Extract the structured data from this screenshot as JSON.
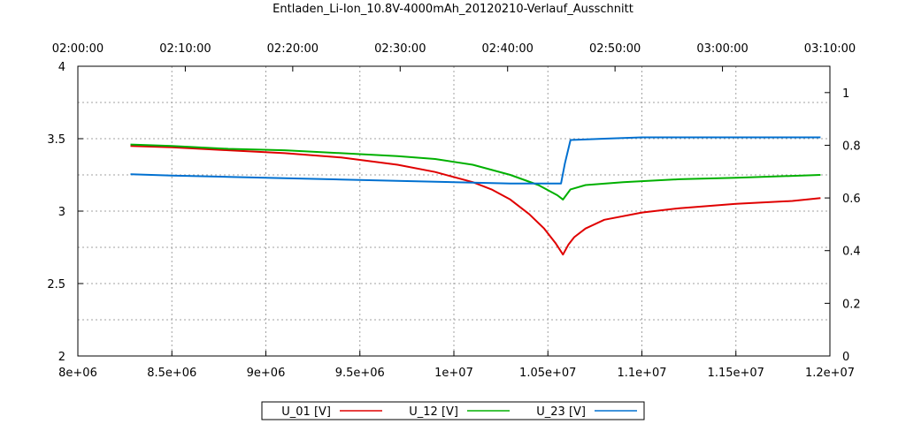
{
  "chart_data": {
    "type": "line",
    "title": "Entladen_Li-Ion_10.8V-4000mAh_20120210-Verlauf_Ausschnitt",
    "xlim": [
      8000000,
      12000000
    ],
    "ylim": [
      2,
      4
    ],
    "y2lim": [
      0,
      1.1
    ],
    "x_ticks": [
      {
        "value": 8000000,
        "label": "8e+06"
      },
      {
        "value": 8500000,
        "label": "8.5e+06"
      },
      {
        "value": 9000000,
        "label": "9e+06"
      },
      {
        "value": 9500000,
        "label": "9.5e+06"
      },
      {
        "value": 10000000,
        "label": "1e+07"
      },
      {
        "value": 10500000,
        "label": "1.05e+07"
      },
      {
        "value": 11000000,
        "label": "1.1e+07"
      },
      {
        "value": 11500000,
        "label": "1.15e+07"
      },
      {
        "value": 12000000,
        "label": "1.2e+07"
      }
    ],
    "x2_ticks": [
      {
        "value": 8000000,
        "label": "02:00:00"
      },
      {
        "value": 8571429,
        "label": "02:10:00"
      },
      {
        "value": 9142857,
        "label": "02:20:00"
      },
      {
        "value": 9714286,
        "label": "02:30:00"
      },
      {
        "value": 10285714,
        "label": "02:40:00"
      },
      {
        "value": 10857143,
        "label": "02:50:00"
      },
      {
        "value": 11428571,
        "label": "03:00:00"
      },
      {
        "value": 12000000,
        "label": "03:10:00"
      }
    ],
    "y_ticks": [
      {
        "value": 2,
        "label": "2"
      },
      {
        "value": 2.5,
        "label": "2.5"
      },
      {
        "value": 3,
        "label": "3"
      },
      {
        "value": 3.5,
        "label": "3.5"
      },
      {
        "value": 4,
        "label": "4"
      }
    ],
    "y_minor_grid": [
      2.25,
      2.75,
      3.25,
      3.75
    ],
    "y2_ticks": [
      {
        "value": 0,
        "label": "0"
      },
      {
        "value": 0.2,
        "label": "0.2"
      },
      {
        "value": 0.4,
        "label": "0.4"
      },
      {
        "value": 0.6,
        "label": "0.6"
      },
      {
        "value": 0.8,
        "label": "0.8"
      },
      {
        "value": 1.0,
        "label": "1"
      }
    ],
    "grid": true,
    "legend_position": "bottom-center",
    "series": [
      {
        "name": "U_01 [V]",
        "color": "#e00000",
        "x": [
          8280000,
          8500000,
          8800000,
          9100000,
          9400000,
          9700000,
          9900000,
          10100000,
          10200000,
          10300000,
          10400000,
          10480000,
          10540000,
          10580000,
          10610000,
          10640000,
          10700000,
          10800000,
          11000000,
          11200000,
          11500000,
          11800000,
          11950000
        ],
        "values": [
          3.45,
          3.44,
          3.42,
          3.4,
          3.37,
          3.32,
          3.27,
          3.2,
          3.15,
          3.08,
          2.98,
          2.88,
          2.78,
          2.7,
          2.77,
          2.82,
          2.88,
          2.94,
          2.99,
          3.02,
          3.05,
          3.07,
          3.09
        ]
      },
      {
        "name": "U_12 [V]",
        "color": "#00b000",
        "x": [
          8280000,
          8500000,
          8800000,
          9100000,
          9400000,
          9700000,
          9900000,
          10100000,
          10300000,
          10450000,
          10550000,
          10580000,
          10620000,
          10700000,
          10900000,
          11200000,
          11500000,
          11950000
        ],
        "values": [
          3.46,
          3.45,
          3.43,
          3.42,
          3.4,
          3.38,
          3.36,
          3.32,
          3.25,
          3.18,
          3.11,
          3.08,
          3.15,
          3.18,
          3.2,
          3.22,
          3.23,
          3.25
        ]
      },
      {
        "name": "U_23 [V]",
        "color": "#0070d0",
        "x": [
          8280000,
          8500000,
          8800000,
          9100000,
          9400000,
          9700000,
          10000000,
          10300000,
          10570000,
          10590000,
          10620000,
          10800000,
          11000000,
          11300000,
          11950000
        ],
        "values": [
          0.69,
          0.685,
          0.68,
          0.675,
          0.67,
          0.665,
          0.66,
          0.655,
          0.655,
          0.73,
          0.82,
          0.825,
          0.83,
          0.83,
          0.83
        ],
        "axis": "y2"
      }
    ]
  }
}
